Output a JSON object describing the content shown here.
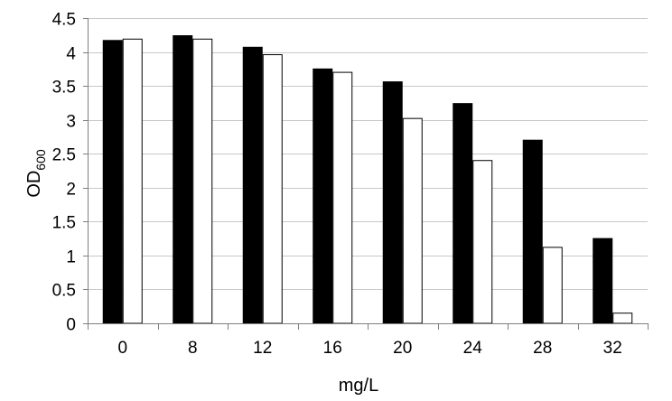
{
  "chart_data": {
    "type": "bar",
    "xlabel": "mg/L",
    "ylabel": {
      "main": "OD",
      "subscript": "600"
    },
    "categories": [
      "0",
      "8",
      "12",
      "16",
      "20",
      "24",
      "28",
      "32"
    ],
    "ylim": [
      0,
      4.5
    ],
    "yticks": [
      "0",
      "0.5",
      "1",
      "1.5",
      "2",
      "2.5",
      "3",
      "3.5",
      "4",
      "4.5"
    ],
    "grid": true,
    "legend": "none",
    "series": [
      {
        "color": "#000000",
        "values": [
          4.17,
          4.24,
          4.07,
          3.75,
          3.56,
          3.24,
          2.7,
          1.25
        ]
      },
      {
        "color": "#ffffff",
        "values": [
          4.19,
          4.19,
          3.96,
          3.7,
          3.02,
          2.4,
          1.12,
          0.15
        ]
      }
    ]
  }
}
